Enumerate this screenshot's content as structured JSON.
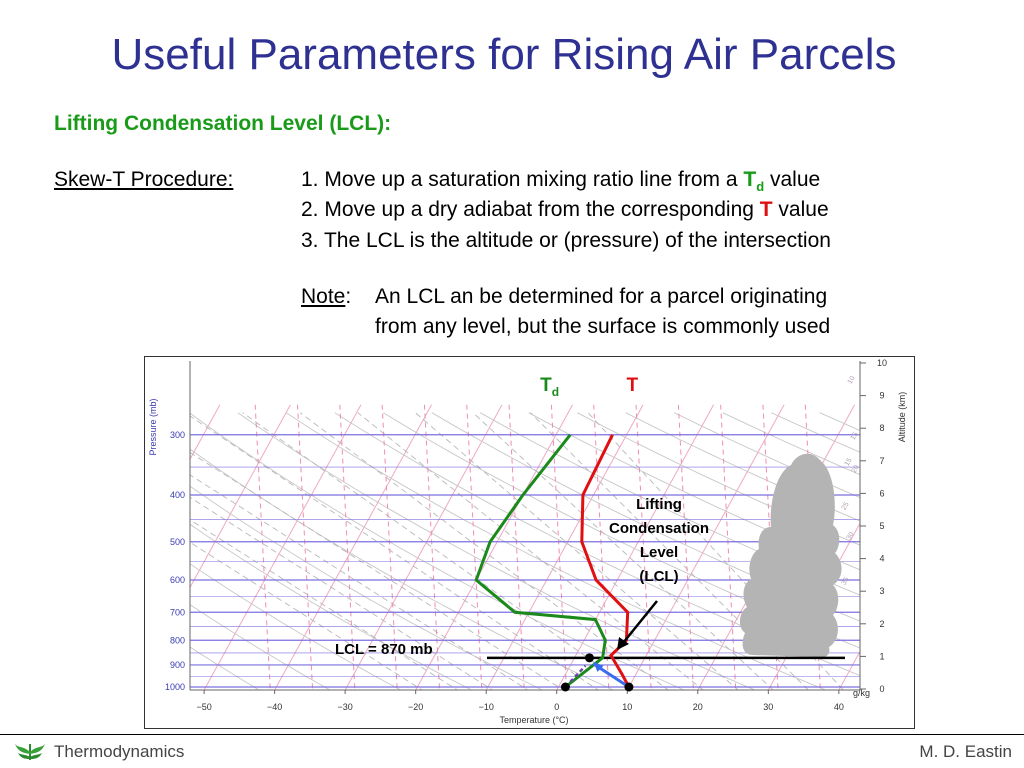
{
  "slide": {
    "title": "Useful Parameters for Rising Air Parcels",
    "subtitle": "Lifting Condensation Level (LCL):",
    "procedure_label": "Skew-T Procedure:",
    "steps": [
      {
        "before": "1. Move up a saturation mixing ratio line from a ",
        "keyword": "T",
        "keyword_sub": "d",
        "after": " value"
      },
      {
        "before": "2. Move up a dry adiabat from the corresponding ",
        "keyword": "T",
        "keyword_sub": "",
        "after": " value"
      },
      {
        "before": "3. The LCL is the altitude or (pressure) of the intersection",
        "keyword": "",
        "keyword_sub": "",
        "after": ""
      }
    ],
    "note_label": "Note",
    "note_colon": ":",
    "note_lines": [
      "An LCL an be determined for a parcel originating",
      "from any level, but the surface is commonly used"
    ]
  },
  "chart_data": {
    "type": "line",
    "x_axis": {
      "label": "Temperature (°C)",
      "ticks": [
        "−50",
        "−40",
        "−30",
        "−20",
        "−10",
        "0",
        "10",
        "20",
        "30",
        "40"
      ],
      "range": [
        -52,
        43
      ]
    },
    "left_axis": {
      "label": "Pressure (mb)",
      "ticks": [
        "300",
        "400",
        "500",
        "600",
        "700",
        "800",
        "900",
        "1000"
      ]
    },
    "right_axis": {
      "label": "Altitude (km)",
      "ticks": [
        "0",
        "1",
        "2",
        "3",
        "4",
        "5",
        "6",
        "7",
        "8",
        "9",
        "10"
      ]
    },
    "mixing_ratio_unit_label": "g/kg",
    "mixing_ratio_labels": [
      "10",
      "15",
      "15",
      "20",
      "25",
      "30",
      "35"
    ],
    "series": [
      {
        "name": "T",
        "name_sub": "",
        "color": "#e01010",
        "points": [
          [
            -12,
            300
          ],
          [
            -11.5,
            400
          ],
          [
            -8,
            500
          ],
          [
            -3,
            600
          ],
          [
            4,
            700
          ],
          [
            6,
            800
          ],
          [
            5,
            860
          ],
          [
            8,
            940
          ],
          [
            10,
            1000
          ]
        ]
      },
      {
        "name": "T",
        "name_sub": "d",
        "color": "#1a8a1a",
        "points": [
          [
            -18,
            300
          ],
          [
            -20,
            400
          ],
          [
            -21,
            500
          ],
          [
            -20,
            600
          ],
          [
            -12,
            700
          ],
          [
            0,
            725
          ],
          [
            3,
            800
          ],
          [
            4,
            870
          ],
          [
            1,
            1000
          ]
        ]
      }
    ],
    "lcl_label": "LCL =  870 mb",
    "lcl_pressure_mb": 870,
    "annotation": [
      "Lifting",
      "Condensation",
      "Level",
      "(LCL)"
    ],
    "colors": {
      "pressure_lines": "#7b6fe0",
      "isotherms": "#f0a8c8",
      "dry_adiabats": "#c8c8c8",
      "moist_adiabats": "#b8b8b8",
      "mixing_ratio": "#f08cb0",
      "dry_adiabat_parcel": "#3a6cf0",
      "mixing_ratio_parcel": "#8a2be2",
      "cloud": "#b4b4b4"
    }
  },
  "footer": {
    "left": "Thermodynamics",
    "right": "M. D. Eastin"
  }
}
